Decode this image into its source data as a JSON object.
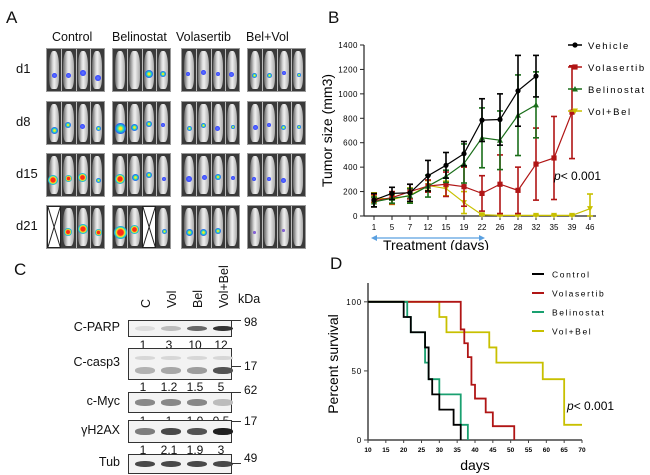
{
  "panels": {
    "A": {
      "letter": "A",
      "groups": [
        "Control",
        "Belinostat",
        "Volasertib",
        "Bel+Vol"
      ],
      "days": [
        "d1",
        "d8",
        "d15",
        "d21"
      ],
      "signal_colors": {
        "low": "#2a3cff",
        "mid": "#19d6c8",
        "high": "#ff2a1a",
        "yellow": "#ffe81a"
      }
    },
    "B": {
      "letter": "B",
      "p_value_prefix": "p",
      "p_value_text": "< 0.001",
      "treatment_label": "Treatment (days)",
      "treatment_arrow_color": "#5aa0e0"
    },
    "C": {
      "letter": "C",
      "lanes": [
        "C",
        "Vol",
        "Bel",
        "Vol+Bel"
      ],
      "kda_label": "kDa",
      "blots": [
        {
          "label": "C-PARP",
          "kda": "98",
          "quant": [
            "1",
            "3",
            "10",
            "12"
          ],
          "intensity": [
            0.05,
            0.2,
            0.6,
            0.85
          ]
        },
        {
          "label": "C-casp3",
          "kda": "17",
          "quant": [
            "1",
            "1.2",
            "1.5",
            "5"
          ],
          "intensity": [
            0.25,
            0.3,
            0.35,
            0.7
          ]
        },
        {
          "label": "c-Myc",
          "kda": "62",
          "quant": [
            "1",
            "1",
            "1.0",
            "0.5"
          ],
          "intensity": [
            0.45,
            0.45,
            0.45,
            0.2
          ]
        },
        {
          "label": "γH2AX",
          "kda": "17",
          "quant": [
            "1",
            "2.1",
            "1.9",
            "3"
          ],
          "intensity": [
            0.5,
            0.75,
            0.7,
            0.95
          ]
        },
        {
          "label": "Tub",
          "kda": "49",
          "quant": null,
          "intensity": [
            0.75,
            0.75,
            0.75,
            0.75
          ]
        }
      ]
    },
    "D": {
      "letter": "D",
      "p_value_prefix": "p",
      "p_value_text": "< 0.001"
    }
  },
  "chart_data": [
    {
      "id": "B",
      "type": "line",
      "title": "",
      "xlabel": "Treatment (days)",
      "ylabel": "Tumor size (mm3)",
      "x": [
        "1",
        "5",
        "7",
        "12",
        "15",
        "19",
        "22",
        "26",
        "28",
        "32",
        "35",
        "39",
        "46"
      ],
      "ylim": [
        0,
        1400
      ],
      "yticks": [
        0,
        200,
        400,
        600,
        800,
        1000,
        1200,
        1400
      ],
      "legend_position": "top-right",
      "series": [
        {
          "name": "Vehicle",
          "color": "#000000",
          "marker": "circle",
          "values": [
            130,
            185,
            190,
            330,
            415,
            510,
            785,
            790,
            1025,
            1145,
            null,
            null,
            null
          ],
          "errors": [
            55,
            50,
            70,
            125,
            105,
            100,
            175,
            210,
            290,
            170,
            null,
            null,
            null
          ]
        },
        {
          "name": "Volasertib",
          "color": "#b01515",
          "marker": "square",
          "values": [
            125,
            150,
            200,
            245,
            260,
            240,
            185,
            260,
            210,
            425,
            475,
            850,
            null
          ],
          "errors": [
            50,
            50,
            60,
            50,
            100,
            160,
            145,
            240,
            190,
            295,
            340,
            380,
            null
          ]
        },
        {
          "name": "Belinostat",
          "color": "#1a6e1a",
          "marker": "triangle-up",
          "values": [
            115,
            145,
            165,
            245,
            325,
            430,
            640,
            620,
            825,
            910,
            null,
            null,
            null
          ],
          "errors": [
            40,
            40,
            60,
            90,
            50,
            160,
            245,
            240,
            330,
            270,
            null,
            null,
            null
          ]
        },
        {
          "name": "Vol+Bel",
          "color": "#c8c000",
          "marker": "triangle-down",
          "values": [
            150,
            135,
            170,
            250,
            225,
            110,
            10,
            5,
            5,
            5,
            5,
            5,
            60
          ],
          "errors": [
            40,
            40,
            60,
            40,
            60,
            90,
            5,
            3,
            3,
            3,
            3,
            3,
            120
          ]
        }
      ],
      "annotation": "p< 0.001"
    },
    {
      "id": "D",
      "type": "line",
      "subtype": "kaplan-meier",
      "title": "",
      "xlabel": "days",
      "ylabel": "Percent survival",
      "xlim": [
        10,
        70
      ],
      "xticks": [
        10,
        15,
        20,
        25,
        30,
        35,
        40,
        45,
        50,
        55,
        60,
        65,
        70
      ],
      "ylim": [
        0,
        110
      ],
      "yticks": [
        0,
        50,
        100
      ],
      "legend_position": "top-right",
      "series": [
        {
          "name": "Control",
          "color": "#000000",
          "steps": [
            [
              10,
              100
            ],
            [
              20,
              89
            ],
            [
              22,
              78
            ],
            [
              26,
              67
            ],
            [
              27,
              44
            ],
            [
              28,
              33
            ],
            [
              30,
              22
            ],
            [
              34,
              11
            ],
            [
              36,
              0
            ]
          ]
        },
        {
          "name": "Volasertib",
          "color": "#b01515",
          "steps": [
            [
              10,
              100
            ],
            [
              36,
              80
            ],
            [
              37,
              70
            ],
            [
              38,
              60
            ],
            [
              39,
              40
            ],
            [
              40,
              30
            ],
            [
              43,
              20
            ],
            [
              45,
              10
            ],
            [
              51,
              0
            ]
          ]
        },
        {
          "name": "Belinostat",
          "color": "#1aa070",
          "steps": [
            [
              10,
              100
            ],
            [
              21,
              89
            ],
            [
              22,
              78
            ],
            [
              26,
              56
            ],
            [
              27,
              44
            ],
            [
              30,
              33
            ],
            [
              36,
              11
            ],
            [
              38,
              0
            ]
          ]
        },
        {
          "name": "Vol+Bel",
          "color": "#c8c000",
          "steps": [
            [
              10,
              100
            ],
            [
              30,
              89
            ],
            [
              32,
              78
            ],
            [
              44,
              67
            ],
            [
              46,
              56
            ],
            [
              59,
              44
            ],
            [
              65,
              11
            ],
            [
              70,
              11
            ]
          ]
        }
      ],
      "annotation": "p< 0.001"
    }
  ]
}
